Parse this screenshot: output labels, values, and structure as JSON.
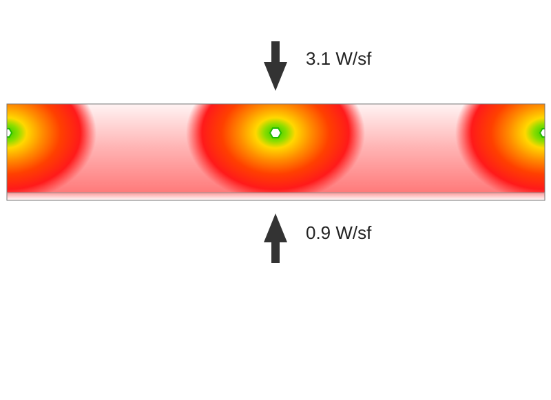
{
  "heat_flux": {
    "top_label": "3.1 W/sf",
    "bottom_label": "0.9 W/sf"
  },
  "colors": {
    "arrow": "#333333",
    "hot_core": "#33cc00",
    "hot_ring": "#ffd800",
    "warm": "#ff5a00",
    "red": "#ff1a1a",
    "cool": "#ffffff",
    "outline": "#777777"
  },
  "heat_sources": [
    {
      "name": "pipe-left-edge"
    },
    {
      "name": "pipe-center"
    },
    {
      "name": "pipe-right-edge"
    }
  ]
}
